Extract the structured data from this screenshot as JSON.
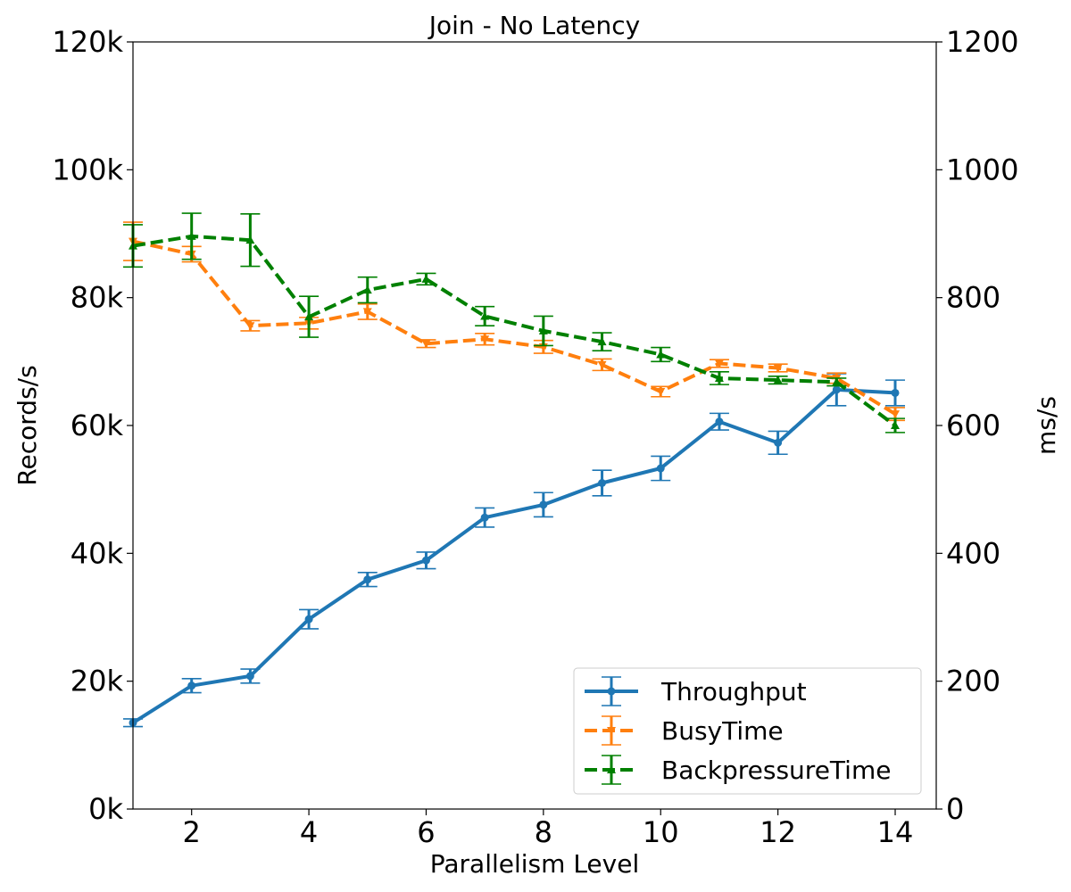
{
  "chart_data": {
    "type": "line",
    "title": "Join - No Latency",
    "xlabel": "Parallelism Level",
    "ylabel_left": "Records/s",
    "ylabel_right": "ms/s",
    "x": [
      1,
      2,
      3,
      4,
      5,
      6,
      7,
      8,
      9,
      10,
      11,
      12,
      13,
      14
    ],
    "xticks": [
      "2",
      "4",
      "6",
      "8",
      "10",
      "12",
      "14"
    ],
    "xlim": [
      1,
      14.7
    ],
    "yticks_left": [
      "0k",
      "20k",
      "40k",
      "60k",
      "80k",
      "100k",
      "120k"
    ],
    "ylim_left": [
      0,
      120000
    ],
    "yticks_right": [
      "0",
      "200",
      "400",
      "600",
      "800",
      "1000",
      "1200"
    ],
    "ylim_right": [
      0,
      1200
    ],
    "grid": false,
    "legend_position": "bottom-right",
    "series": [
      {
        "name": "Throughput",
        "axis": "left",
        "color": "#1f77b4",
        "linestyle": "solid",
        "marker": "circle",
        "values": [
          13500,
          19300,
          20800,
          29700,
          35900,
          38900,
          45600,
          47600,
          51000,
          53300,
          60600,
          57300,
          65600,
          65100
        ],
        "errors": [
          600,
          1100,
          1100,
          1500,
          1100,
          1300,
          1500,
          1900,
          2000,
          1900,
          1300,
          1800,
          2500,
          2000
        ]
      },
      {
        "name": "BusyTime",
        "axis": "right",
        "color": "#ff7f0e",
        "linestyle": "dashed",
        "marker": "triangle-down",
        "values": [
          888,
          868,
          756,
          760,
          778,
          728,
          735,
          723,
          695,
          653,
          697,
          690,
          674,
          618
        ],
        "errors": [
          30,
          12,
          8,
          9,
          12,
          6,
          9,
          10,
          9,
          8,
          6,
          6,
          8,
          10
        ]
      },
      {
        "name": "BackpressureTime",
        "axis": "right",
        "color": "#008000",
        "linestyle": "dashed",
        "marker": "triangle-up",
        "values": [
          881,
          896,
          890,
          770,
          812,
          829,
          771,
          748,
          731,
          711,
          674,
          671,
          668,
          600
        ],
        "errors": [
          33,
          36,
          41,
          32,
          20,
          9,
          15,
          23,
          14,
          11,
          10,
          6,
          6,
          11
        ]
      }
    ]
  }
}
